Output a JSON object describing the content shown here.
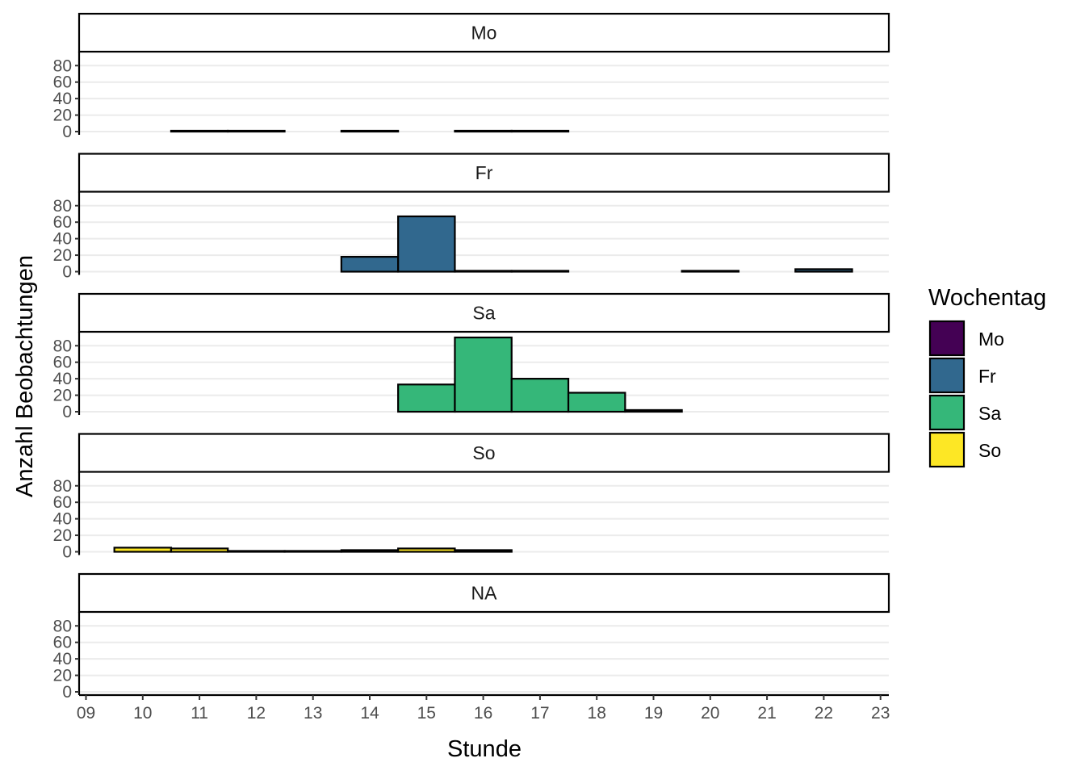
{
  "chart_data": {
    "type": "bar",
    "subtype": "faceted-histogram",
    "xlabel": "Stunde",
    "ylabel": "Anzahl Beobachtungen",
    "x_ticks": [
      "09",
      "10",
      "11",
      "12",
      "13",
      "14",
      "15",
      "16",
      "17",
      "18",
      "19",
      "20",
      "21",
      "22",
      "23"
    ],
    "y_ticks": [
      0,
      20,
      40,
      60,
      80
    ],
    "ylim": [
      0,
      92
    ],
    "xlim": [
      9,
      23
    ],
    "bin_width_hours": 1,
    "x": [
      10,
      11,
      12,
      13,
      14,
      15,
      16,
      17,
      18,
      19,
      20,
      21,
      22
    ],
    "grid": "horizontal major",
    "legend": {
      "title": "Wochentag",
      "position": "right",
      "entries": [
        {
          "label": "Mo",
          "color": "#440154"
        },
        {
          "label": "Fr",
          "color": "#31688E"
        },
        {
          "label": "Sa",
          "color": "#35B779"
        },
        {
          "label": "So",
          "color": "#FDE725"
        }
      ]
    },
    "panels": [
      {
        "label": "Mo",
        "color": "#440154",
        "values": [
          0,
          1,
          1,
          0,
          1,
          0,
          1,
          1,
          0,
          0,
          0,
          0,
          0
        ]
      },
      {
        "label": "Fr",
        "color": "#31688E",
        "values": [
          0,
          0,
          0,
          0,
          18,
          67,
          1,
          1,
          0,
          0,
          1,
          0,
          3
        ]
      },
      {
        "label": "Sa",
        "color": "#35B779",
        "values": [
          0,
          0,
          0,
          0,
          0,
          33,
          90,
          40,
          23,
          2,
          0,
          0,
          0
        ]
      },
      {
        "label": "So",
        "color": "#FDE725",
        "values": [
          5,
          4,
          1,
          1,
          2,
          4,
          2,
          0,
          0,
          0,
          0,
          0,
          0
        ]
      },
      {
        "label": "NA",
        "color": "#808080",
        "values": [
          0,
          0,
          0,
          0,
          0,
          0,
          0,
          0,
          0,
          0,
          0,
          0,
          0
        ]
      }
    ]
  }
}
